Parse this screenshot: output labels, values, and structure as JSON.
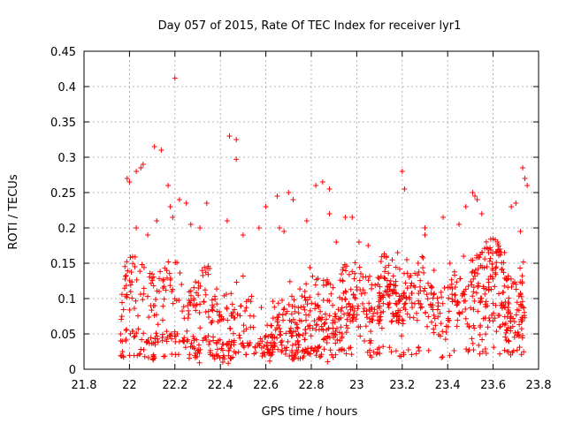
{
  "chart_data": {
    "type": "scatter",
    "title": "Day 057 of 2015, Rate Of TEC Index for receiver lyr1",
    "xlabel": "GPS time / hours",
    "ylabel": "ROTI / TECUs",
    "xlim": [
      21.8,
      23.8
    ],
    "ylim": [
      0,
      0.45
    ],
    "xticks": [
      "21.8",
      "22",
      "22.2",
      "22.4",
      "22.6",
      "22.8",
      "23",
      "23.2",
      "23.4",
      "23.6",
      "23.8"
    ],
    "yticks": [
      "0",
      "0.05",
      "0.1",
      "0.15",
      "0.2",
      "0.25",
      "0.3",
      "0.35",
      "0.4",
      "0.45"
    ],
    "grid": true,
    "marker": "+",
    "color": "#ff0000",
    "series": [
      {
        "name": "lyr1",
        "x": [
          22.2,
          22.44,
          22.47,
          22.11,
          22.14,
          21.99,
          22.0,
          22.03,
          22.05,
          22.06,
          22.47,
          22.34,
          22.88,
          22.65,
          22.98,
          23.73,
          23.74,
          23.75,
          23.68,
          23.7,
          23.2,
          23.21,
          23.51,
          23.52,
          23.53,
          22.18,
          22.19,
          22.22,
          22.25,
          22.17,
          22.6,
          22.66,
          22.82,
          22.85,
          22.88,
          22.7,
          22.72,
          22.95,
          23.3,
          23.38,
          23.45,
          23.48,
          23.55,
          23.62,
          23.65,
          23.3,
          22.03,
          22.08,
          22.12,
          22.27,
          22.31,
          22.43,
          22.5,
          22.57,
          22.68,
          22.78,
          22.91,
          23.01,
          23.05,
          23.12,
          23.18,
          23.22,
          23.27,
          23.34,
          23.41,
          23.47,
          23.58,
          23.63,
          23.72
        ],
        "y": [
          0.412,
          0.33,
          0.325,
          0.315,
          0.31,
          0.27,
          0.265,
          0.28,
          0.285,
          0.29,
          0.297,
          0.235,
          0.255,
          0.245,
          0.215,
          0.285,
          0.27,
          0.26,
          0.23,
          0.235,
          0.28,
          0.255,
          0.25,
          0.245,
          0.24,
          0.23,
          0.215,
          0.24,
          0.235,
          0.26,
          0.23,
          0.2,
          0.26,
          0.265,
          0.22,
          0.25,
          0.24,
          0.215,
          0.2,
          0.215,
          0.205,
          0.23,
          0.22,
          0.18,
          0.165,
          0.19,
          0.2,
          0.19,
          0.21,
          0.205,
          0.2,
          0.21,
          0.19,
          0.2,
          0.195,
          0.21,
          0.18,
          0.18,
          0.175,
          0.16,
          0.165,
          0.155,
          0.15,
          0.14,
          0.15,
          0.16,
          0.165,
          0.17,
          0.195
        ],
        "bands": [
          {
            "x_start": 21.96,
            "x_end": 23.74,
            "y_start": 0.022,
            "y_end": 0.025,
            "spread": 0.006
          },
          {
            "x_start": 21.96,
            "x_end": 22.9,
            "y_start": 0.05,
            "y_end": 0.02,
            "spread": 0.008
          },
          {
            "x_start": 22.3,
            "x_end": 23.5,
            "y_start": 0.02,
            "y_end": 0.12,
            "spread": 0.02
          },
          {
            "x_start": 21.96,
            "x_end": 23.7,
            "y_start": 0.08,
            "y_end": 0.07,
            "spread": 0.025
          },
          {
            "x_start": 21.96,
            "x_end": 22.5,
            "y_start": 0.13,
            "y_end": 0.09,
            "spread": 0.03
          },
          {
            "x_start": 22.6,
            "x_end": 23.2,
            "y_start": 0.04,
            "y_end": 0.09,
            "spread": 0.03
          },
          {
            "x_start": 23.1,
            "x_end": 23.74,
            "y_start": 0.11,
            "y_end": 0.06,
            "spread": 0.03
          },
          {
            "x_start": 23.5,
            "x_end": 23.74,
            "y_start": 0.15,
            "y_end": 0.1,
            "spread": 0.04
          },
          {
            "x_start": 22.7,
            "x_end": 23.3,
            "y_start": 0.1,
            "y_end": 0.13,
            "spread": 0.03
          }
        ]
      }
    ]
  }
}
